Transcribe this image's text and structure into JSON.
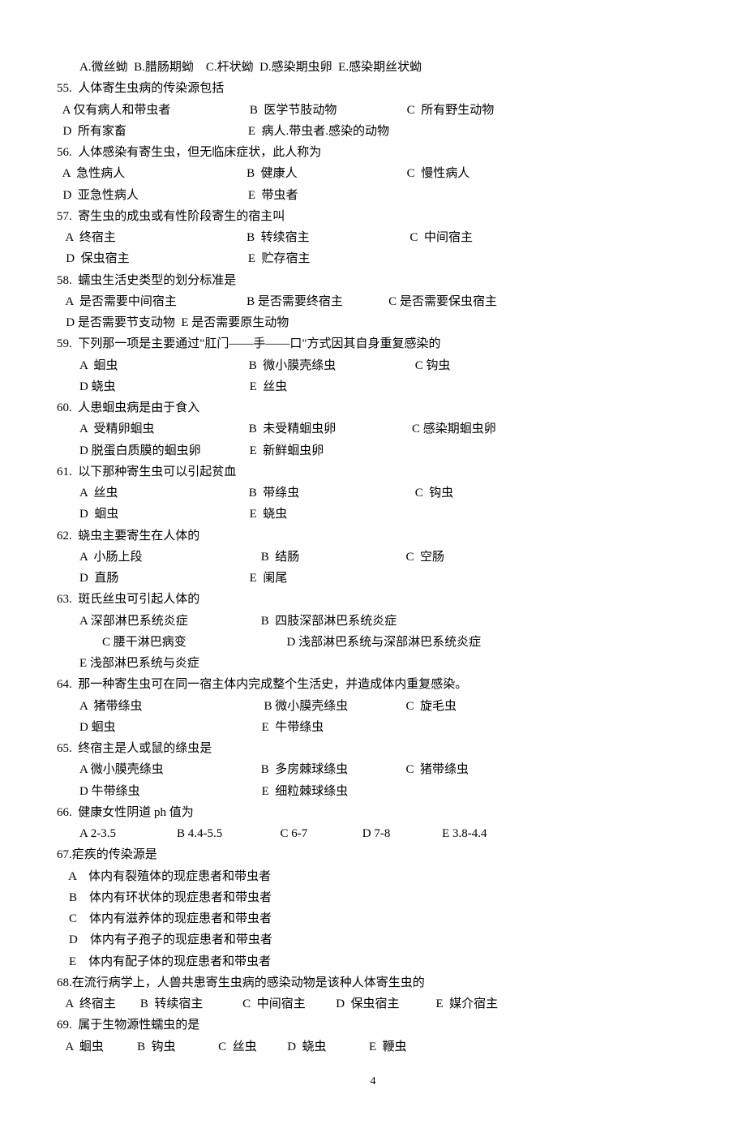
{
  "pageNumber": "4",
  "lines": [
    {
      "cls": "indent1",
      "text": "A.微丝蚴  B.腊肠期蚴    C.杆状蚴  D.感染期虫卵  E.感染期丝状蚴"
    },
    {
      "cls": "",
      "text": "55.  人体寄生虫病的传染源包括"
    },
    {
      "cls": "",
      "text": "  A 仅有病人和带虫者                          B  医学节肢动物                       C  所有野生动物"
    },
    {
      "cls": "",
      "text": "  D  所有家畜                                        E  病人.带虫者.感染的动物"
    },
    {
      "cls": "",
      "text": "56.  人体感染有寄生虫，但无临床症状，此人称为"
    },
    {
      "cls": "",
      "text": "  A  急性病人                                        B  健康人                                    C  慢性病人"
    },
    {
      "cls": "",
      "text": "  D  亚急性病人                                    E  带虫者"
    },
    {
      "cls": "",
      "text": "57.  寄生虫的成虫或有性阶段寄生的宿主叫"
    },
    {
      "cls": "",
      "text": "   A  终宿主                                           B  转续宿主                                 C  中间宿主"
    },
    {
      "cls": "",
      "text": "   D  保虫宿主                                       E  贮存宿主"
    },
    {
      "cls": "",
      "text": "58.  蠕虫生活史类型的划分标准是"
    },
    {
      "cls": "",
      "text": "   A  是否需要中间宿主                       B 是否需要终宿主               C 是否需要保虫宿主"
    },
    {
      "cls": "",
      "text": "   D 是否需要节支动物  E 是否需要原生动物"
    },
    {
      "cls": "",
      "text": "59.  下列那一项是主要通过\"肛门——手——口\"方式因其自身重复感染的"
    },
    {
      "cls": "indent1",
      "text": "A  蛔虫                                           B  微小膜壳绦虫                          C 钩虫"
    },
    {
      "cls": "indent1",
      "text": "D 蛲虫                                            E  丝虫"
    },
    {
      "cls": "",
      "text": "60.  人患蛔虫病是由于食入"
    },
    {
      "cls": "indent1",
      "text": "A  受精卵蛔虫                               B  未受精蛔虫卵                         C 感染期蛔虫卵"
    },
    {
      "cls": "indent1",
      "text": "D 脱蛋白质膜的蛔虫卵                E  新鲜蛔虫卵"
    },
    {
      "cls": "",
      "text": "61.  以下那种寄生虫可以引起贫血"
    },
    {
      "cls": "indent1",
      "text": "A  丝虫                                           B  带绦虫                                      C  钩虫"
    },
    {
      "cls": "indent1",
      "text": "D  蛔虫                                           E  蛲虫"
    },
    {
      "cls": "",
      "text": "62.  蛲虫主要寄生在人体的"
    },
    {
      "cls": "indent1",
      "text": "A  小肠上段                                       B  结肠                                   C  空肠"
    },
    {
      "cls": "indent1",
      "text": "D  直肠                                           E  阑尾"
    },
    {
      "cls": "",
      "text": "63.  斑氏丝虫可引起人体的"
    },
    {
      "cls": "indent1",
      "text": "A 深部淋巴系统炎症                        B  四肢深部淋巴系统炎症"
    },
    {
      "cls": "indent2",
      "text": "C 腰干淋巴病变                                 D 浅部淋巴系统与深部淋巴系统炎症"
    },
    {
      "cls": "indent1",
      "text": "E 浅部淋巴系统与炎症"
    },
    {
      "cls": "",
      "text": "64.  那一种寄生虫可在同一宿主体内完成整个生活史，并造成体内重复感染。"
    },
    {
      "cls": "indent1",
      "text": "A  猪带绦虫                                        B 微小膜壳绦虫                   C  旋毛虫"
    },
    {
      "cls": "indent1",
      "text": "D 蛔虫                                                E  牛带绦虫"
    },
    {
      "cls": "",
      "text": "65.  终宿主是人或鼠的绦虫是"
    },
    {
      "cls": "indent1",
      "text": "A 微小膜壳绦虫                                B  多房棘球绦虫                   C  猪带绦虫"
    },
    {
      "cls": "indent1",
      "text": "D 牛带绦虫                                        E  细粒棘球绦虫"
    },
    {
      "cls": "",
      "text": "66.  健康女性阴道 ph 值为"
    },
    {
      "cls": "indent1",
      "text": "A 2-3.5                    B 4.4-5.5                   C 6-7                  D 7-8                 E 3.8-4.4"
    },
    {
      "cls": "",
      "text": "67.疟疾的传染源是"
    },
    {
      "cls": "",
      "text": "    A    体内有裂殖体的现症患者和带虫者"
    },
    {
      "cls": "",
      "text": "    B    体内有环状体的现症患者和带虫者"
    },
    {
      "cls": "",
      "text": "    C    体内有滋养体的现症患者和带虫者"
    },
    {
      "cls": "",
      "text": "    D    体内有子孢子的现症患者和带虫者"
    },
    {
      "cls": "",
      "text": "    E    体内有配子体的现症患者和带虫者"
    },
    {
      "cls": "",
      "text": "68.在流行病学上，人兽共患寄生虫病的感染动物是该种人体寄生虫的"
    },
    {
      "cls": "",
      "text": "   A  终宿主        B  转续宿主             C  中间宿主          D  保虫宿主            E  媒介宿主"
    },
    {
      "cls": "",
      "text": "69.  属于生物源性蠕虫的是"
    },
    {
      "cls": "",
      "text": "   A  蛔虫           B  钩虫              C  丝虫          D  蛲虫              E  鞭虫"
    }
  ]
}
